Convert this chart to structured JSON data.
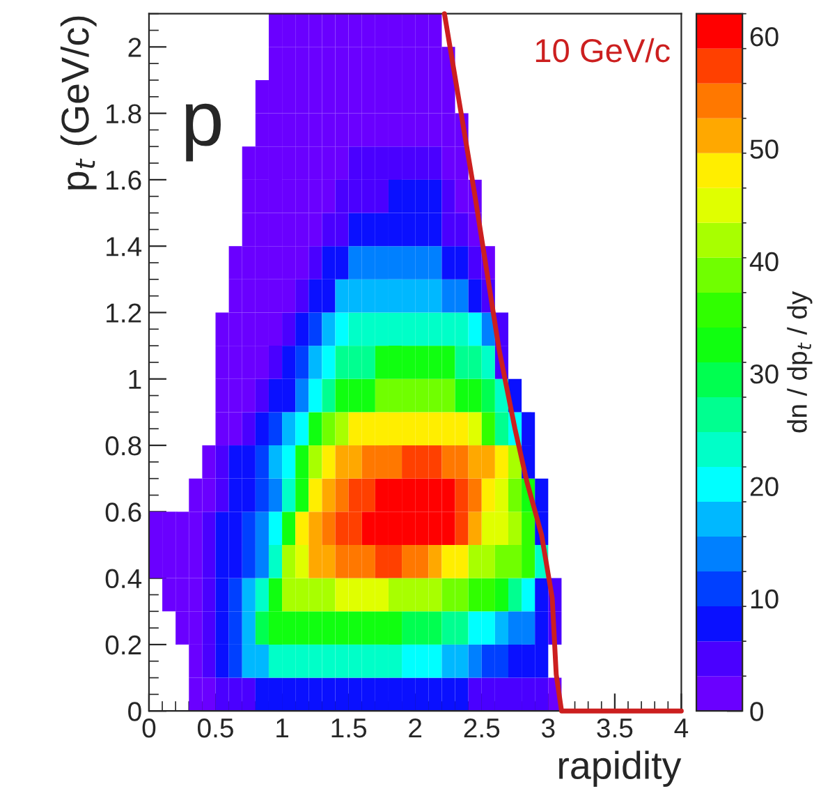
{
  "chart_data": {
    "type": "heatmap",
    "x": [
      0.05,
      0.15,
      0.25,
      0.35,
      0.45,
      0.55,
      0.65,
      0.75,
      0.85,
      0.95,
      1.05,
      1.15,
      1.25,
      1.35,
      1.45,
      1.55,
      1.65,
      1.75,
      1.85,
      1.95,
      2.05,
      2.15,
      2.25,
      2.35,
      2.45,
      2.55,
      2.65,
      2.75,
      2.85,
      2.95,
      3.05,
      3.15,
      3.25,
      3.35,
      3.45,
      3.55,
      3.65,
      3.75,
      3.85,
      3.95
    ],
    "y": [
      2.05,
      1.95,
      1.85,
      1.75,
      1.65,
      1.55,
      1.45,
      1.35,
      1.25,
      1.15,
      1.05,
      0.95,
      0.85,
      0.75,
      0.65,
      0.55,
      0.45,
      0.35,
      0.25,
      0.15,
      0.05
    ],
    "cells": [
      [
        null,
        null,
        null,
        null,
        null,
        null,
        null,
        null,
        null,
        1.5,
        1.5,
        1.5,
        1.5,
        1.5,
        1.5,
        1.5,
        1.5,
        1.5,
        1.5,
        1.5,
        1.5,
        1.5,
        null,
        null,
        null,
        null,
        null,
        null,
        null,
        null,
        null,
        null,
        null,
        null,
        null,
        null,
        null,
        null,
        null,
        null
      ],
      [
        null,
        null,
        null,
        null,
        null,
        null,
        null,
        null,
        null,
        1.5,
        1.5,
        1.5,
        1.5,
        1.5,
        1.5,
        1.5,
        1.5,
        1.5,
        1.5,
        1.5,
        1.5,
        1.5,
        1.5,
        null,
        null,
        null,
        null,
        null,
        null,
        null,
        null,
        null,
        null,
        null,
        null,
        null,
        null,
        null,
        null,
        null
      ],
      [
        null,
        null,
        null,
        null,
        null,
        null,
        null,
        null,
        1.5,
        1.5,
        1.5,
        1.5,
        1.5,
        1.5,
        1.5,
        1.5,
        1.5,
        1.5,
        1.5,
        1.5,
        1.5,
        1.5,
        1.5,
        null,
        null,
        null,
        null,
        null,
        null,
        null,
        null,
        null,
        null,
        null,
        null,
        null,
        null,
        null,
        null,
        null
      ],
      [
        null,
        null,
        null,
        null,
        null,
        null,
        null,
        null,
        1.5,
        1.5,
        1.5,
        1.5,
        1.5,
        1.5,
        1.5,
        1.5,
        1.5,
        1.5,
        1.5,
        1.5,
        1.5,
        1.5,
        1.5,
        1.5,
        null,
        null,
        null,
        null,
        null,
        null,
        null,
        null,
        null,
        null,
        null,
        null,
        null,
        null,
        null,
        null
      ],
      [
        null,
        null,
        null,
        null,
        null,
        null,
        null,
        1.5,
        1.5,
        1.5,
        1.5,
        1.5,
        1.5,
        1.5,
        1.5,
        4.5,
        4.5,
        4.5,
        4.5,
        4.5,
        4.5,
        4.5,
        1.5,
        1.5,
        null,
        null,
        null,
        null,
        null,
        null,
        null,
        null,
        null,
        null,
        null,
        null,
        null,
        null,
        null,
        null
      ],
      [
        null,
        null,
        null,
        null,
        null,
        null,
        null,
        1.5,
        1.5,
        1.5,
        1.5,
        1.5,
        1.5,
        1.5,
        4.5,
        4.5,
        4.5,
        4.5,
        7.5,
        7.5,
        7.5,
        7.5,
        4.5,
        1.5,
        1.5,
        null,
        null,
        null,
        null,
        null,
        null,
        null,
        null,
        null,
        null,
        null,
        null,
        null,
        null,
        null
      ],
      [
        null,
        null,
        null,
        null,
        null,
        null,
        null,
        1.5,
        1.5,
        1.5,
        1.5,
        1.5,
        1.5,
        4.5,
        4.5,
        7.5,
        7.5,
        7.5,
        7.5,
        7.5,
        7.5,
        7.5,
        4.5,
        4.5,
        1.5,
        null,
        null,
        null,
        null,
        null,
        null,
        null,
        null,
        null,
        null,
        null,
        null,
        null,
        null,
        null
      ],
      [
        null,
        null,
        null,
        null,
        null,
        null,
        1.5,
        1.5,
        1.5,
        1.5,
        1.5,
        1.5,
        4.5,
        9,
        9,
        14,
        14,
        14,
        14,
        14,
        14,
        14,
        9,
        9,
        4.5,
        1.5,
        null,
        null,
        null,
        null,
        null,
        null,
        null,
        null,
        null,
        null,
        null,
        null,
        null,
        null
      ],
      [
        null,
        null,
        null,
        null,
        null,
        null,
        1.5,
        1.5,
        1.5,
        1.5,
        1.5,
        4.5,
        9,
        9,
        17,
        17,
        17,
        17,
        17,
        17,
        17,
        17,
        14,
        14,
        9,
        4.5,
        null,
        null,
        null,
        null,
        null,
        null,
        null,
        null,
        null,
        null,
        null,
        null,
        null,
        null
      ],
      [
        null,
        null,
        null,
        null,
        null,
        1.5,
        1.5,
        1.5,
        1.5,
        1.5,
        4.5,
        9,
        12,
        17,
        20,
        23,
        23,
        23,
        23,
        23,
        23,
        23,
        23,
        23,
        20,
        14,
        4.5,
        null,
        null,
        null,
        null,
        null,
        null,
        null,
        null,
        null,
        null,
        null,
        null,
        null
      ],
      [
        null,
        null,
        null,
        null,
        null,
        1.5,
        1.5,
        1.5,
        1.5,
        4.5,
        9,
        12,
        17,
        20,
        27,
        27,
        27,
        32,
        32,
        32,
        32,
        32,
        32,
        26,
        26,
        23,
        4.5,
        null,
        null,
        null,
        null,
        null,
        null,
        null,
        null,
        null,
        null,
        null,
        null,
        null
      ],
      [
        null,
        null,
        null,
        null,
        null,
        1.5,
        1.5,
        1.5,
        4.5,
        9,
        9,
        14,
        20,
        27,
        32,
        32,
        32,
        38,
        38,
        38,
        38,
        38,
        38,
        32,
        32,
        29,
        23,
        7.5,
        null,
        null,
        null,
        null,
        null,
        null,
        null,
        null,
        null,
        null,
        null,
        null
      ],
      [
        null,
        null,
        null,
        null,
        null,
        1.5,
        1.5,
        4.5,
        9,
        12,
        17,
        20,
        32,
        38,
        41,
        48,
        48,
        48,
        48,
        48,
        48,
        48,
        48,
        48,
        44,
        35,
        26,
        20,
        9,
        null,
        null,
        null,
        null,
        null,
        null,
        null,
        null,
        null,
        null,
        null
      ],
      [
        null,
        null,
        null,
        null,
        1.5,
        4.5,
        9,
        9,
        12,
        17,
        20,
        32,
        41,
        48,
        51,
        51,
        54,
        54,
        54,
        57,
        57,
        57,
        54,
        54,
        51,
        51,
        48,
        41,
        9,
        null,
        null,
        null,
        null,
        null,
        null,
        null,
        null,
        null,
        null,
        null
      ],
      [
        null,
        null,
        null,
        1.5,
        1.5,
        4.5,
        9,
        9,
        12,
        14,
        23,
        32,
        48,
        51,
        54,
        57,
        57,
        60,
        60,
        60,
        60,
        60,
        60,
        57,
        54,
        48,
        44,
        38,
        32,
        7.5,
        null,
        null,
        null,
        null,
        null,
        null,
        null,
        null,
        null,
        null
      ],
      [
        1.5,
        1.5,
        1.5,
        1.5,
        4.5,
        9,
        9,
        12,
        14,
        20,
        32,
        48,
        51,
        54,
        57,
        57,
        60,
        60,
        60,
        60,
        60,
        60,
        60,
        57,
        51,
        46,
        46,
        41,
        35,
        9,
        null,
        null,
        null,
        null,
        null,
        null,
        null,
        null,
        null,
        null
      ],
      [
        1.5,
        1.5,
        1.5,
        1.5,
        4.5,
        7.5,
        9,
        12,
        14,
        23,
        41,
        46,
        51,
        51,
        54,
        54,
        54,
        57,
        57,
        54,
        54,
        51,
        48,
        48,
        43,
        43,
        38,
        38,
        35,
        23,
        null,
        null,
        null,
        null,
        null,
        null,
        null,
        null,
        null,
        null
      ],
      [
        null,
        1.5,
        1.5,
        1.5,
        4.5,
        9,
        12,
        17,
        23,
        32,
        41,
        41,
        41,
        41,
        46,
        46,
        46,
        46,
        43,
        41,
        41,
        41,
        38,
        38,
        35,
        35,
        32,
        26,
        20,
        9,
        4.5,
        null,
        null,
        null,
        null,
        null,
        null,
        null,
        null,
        null
      ],
      [
        null,
        null,
        1.5,
        1.5,
        4.5,
        9,
        12,
        17,
        29,
        32,
        32,
        32,
        32,
        32,
        32,
        32,
        32,
        32,
        32,
        29,
        29,
        29,
        26,
        26,
        20,
        20,
        17,
        14,
        14,
        9,
        4.5,
        null,
        null,
        null,
        null,
        null,
        null,
        null,
        null,
        null
      ],
      [
        null,
        null,
        null,
        1.5,
        4.5,
        9,
        12,
        17,
        17,
        23,
        23,
        23,
        23,
        23,
        23,
        23,
        23,
        23,
        23,
        20,
        20,
        20,
        17,
        17,
        14,
        12,
        12,
        9,
        7.5,
        7.5,
        null,
        null,
        null,
        null,
        null,
        null,
        null,
        null,
        null,
        null
      ],
      [
        null,
        null,
        null,
        1.5,
        1.5,
        4.5,
        4.5,
        4.5,
        7.5,
        7.5,
        7.5,
        7.5,
        7.5,
        7.5,
        7.5,
        7.5,
        7.5,
        7.5,
        7.5,
        7.5,
        7.5,
        7.5,
        7.5,
        7.5,
        4.5,
        4.5,
        4.5,
        4.5,
        4.5,
        4.5,
        1.5,
        null,
        null,
        null,
        null,
        null,
        null,
        null,
        null,
        null
      ]
    ],
    "series": [
      {
        "type": "line",
        "name": "10 GeV/c",
        "color": "#cc1f1f",
        "x": [
          2.22,
          2.45,
          2.63,
          2.75,
          2.84,
          2.95,
          3.03,
          3.06,
          3.1,
          4.0
        ],
        "values": [
          2.1,
          1.55,
          1.09,
          0.85,
          0.69,
          0.53,
          0.34,
          0.11,
          0,
          0
        ]
      }
    ],
    "xlim": [
      0,
      4
    ],
    "ylim": [
      0,
      2.1
    ],
    "xticks": [
      0,
      0.5,
      1,
      1.5,
      2,
      2.5,
      3,
      3.5,
      4
    ],
    "yticks": [
      0,
      0.2,
      0.4,
      0.6,
      0.8,
      1,
      1.2,
      1.4,
      1.6,
      1.8,
      2
    ],
    "clim": [
      0,
      62
    ],
    "cticks": [
      0,
      10,
      20,
      30,
      40,
      50,
      60
    ],
    "xlabel": "rapidity",
    "ylabel": "p$_{t}$ (GeV/c)",
    "clabel": "dn / dp$_{t}$ / dy",
    "annotations": [
      "p"
    ]
  }
}
